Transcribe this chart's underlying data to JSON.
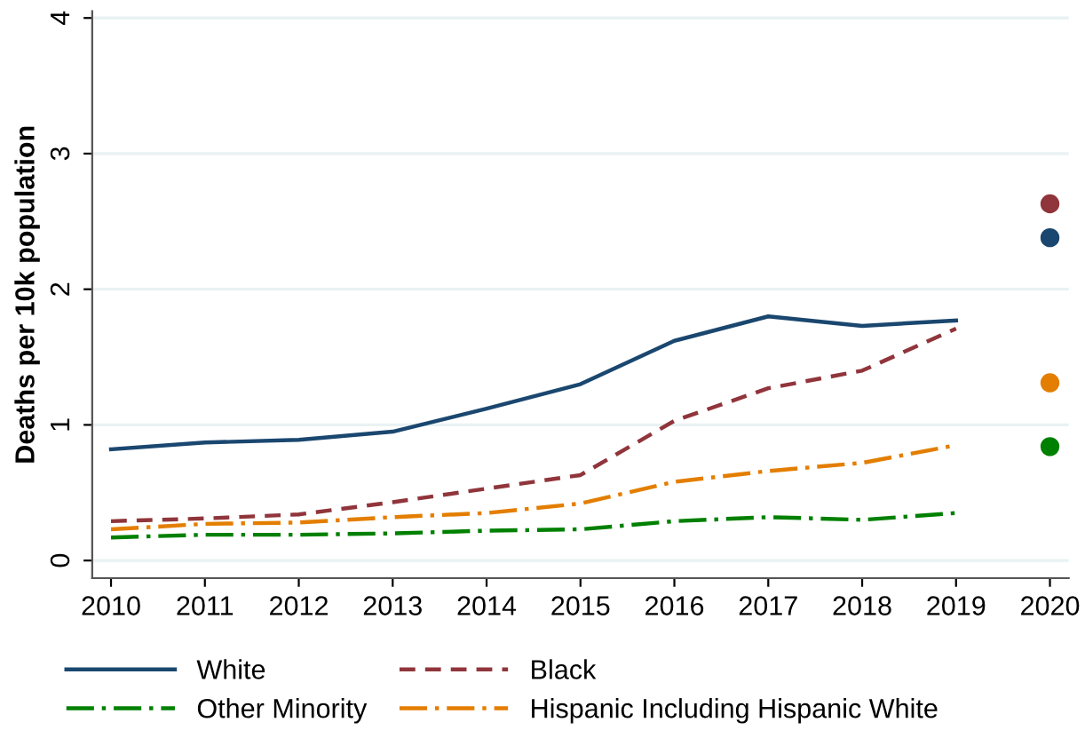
{
  "chart_data": {
    "type": "line",
    "ylabel": "Deaths per 10k population",
    "xlim": [
      2009.8,
      2020.2
    ],
    "xticks": [
      2010,
      2011,
      2012,
      2013,
      2014,
      2015,
      2016,
      2017,
      2018,
      2019,
      2020
    ],
    "ylim": [
      -0.13,
      4.05
    ],
    "yticks": [
      0,
      1,
      2,
      3,
      4
    ],
    "grid": "y",
    "legend": "bottom",
    "series": [
      {
        "name": "White",
        "color": "#1a476f",
        "line_style": "solid",
        "x": [
          2010,
          2011,
          2012,
          2013,
          2014,
          2015,
          2016,
          2017,
          2018,
          2019
        ],
        "values": [
          0.82,
          0.87,
          0.89,
          0.95,
          1.12,
          1.3,
          1.62,
          1.8,
          1.73,
          1.77
        ]
      },
      {
        "name": "Black",
        "color": "#90353b",
        "line_style": "dashed",
        "x": [
          2010,
          2011,
          2012,
          2013,
          2014,
          2015,
          2016,
          2017,
          2018,
          2019
        ],
        "values": [
          0.29,
          0.31,
          0.34,
          0.43,
          0.53,
          0.63,
          1.03,
          1.27,
          1.4,
          1.71
        ]
      },
      {
        "name": "Other Minority",
        "color": "#008000",
        "line_style": "dashdot",
        "x": [
          2010,
          2011,
          2012,
          2013,
          2014,
          2015,
          2016,
          2017,
          2018,
          2019
        ],
        "values": [
          0.17,
          0.19,
          0.19,
          0.2,
          0.22,
          0.23,
          0.29,
          0.32,
          0.3,
          0.35
        ]
      },
      {
        "name": "Hispanic Including Hispanic White",
        "color": "#e37e00",
        "line_style": "dashdot",
        "x": [
          2010,
          2011,
          2012,
          2013,
          2014,
          2015,
          2016,
          2017,
          2018,
          2019
        ],
        "values": [
          0.23,
          0.27,
          0.28,
          0.32,
          0.35,
          0.42,
          0.58,
          0.66,
          0.72,
          0.85
        ]
      },
      {
        "type": "scatter",
        "marker": "circle",
        "x": [
          2020,
          2020,
          2020,
          2020
        ],
        "colors": [
          "#1a476f",
          "#90353b",
          "#008000",
          "#e37e00"
        ],
        "values": [
          2.38,
          2.63,
          0.84,
          1.31
        ]
      }
    ]
  }
}
